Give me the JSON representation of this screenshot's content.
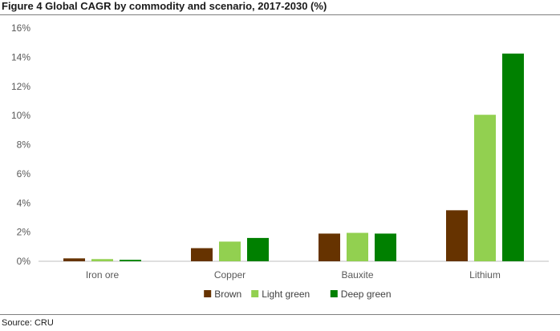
{
  "title": "Figure 4 Global CAGR by commodity and scenario, 2017-2030 (%)",
  "source": "Source: CRU",
  "chart_data": {
    "type": "bar",
    "title": "Figure 4 Global CAGR by commodity and scenario, 2017-2030 (%)",
    "xlabel": "",
    "ylabel": "",
    "categories": [
      "Iron ore",
      "Copper",
      "Bauxite",
      "Lithium"
    ],
    "series": [
      {
        "name": "Brown",
        "color": "#663300",
        "values": [
          0.2,
          0.9,
          1.9,
          3.5
        ]
      },
      {
        "name": "Light green",
        "color": "#92d050",
        "values": [
          0.15,
          1.35,
          1.95,
          10.05
        ]
      },
      {
        "name": "Deep green",
        "color": "#008000",
        "values": [
          0.1,
          1.6,
          1.9,
          14.25
        ]
      }
    ],
    "ylim": [
      0,
      16
    ],
    "yticks": [
      0,
      2,
      4,
      6,
      8,
      10,
      12,
      14,
      16
    ],
    "ytick_format": "percent",
    "grid": false,
    "legend_position": "bottom"
  }
}
